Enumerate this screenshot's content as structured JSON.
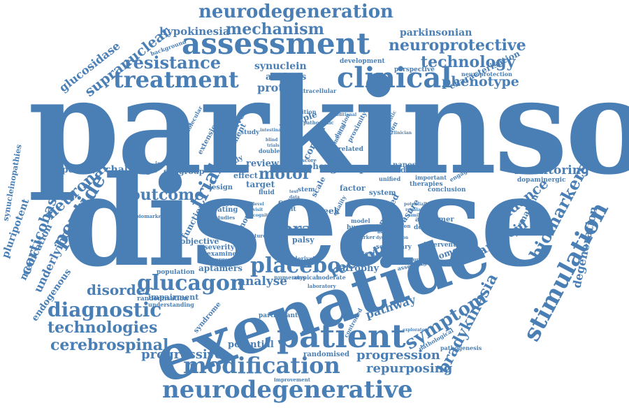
{
  "accent": "#4a7fb5",
  "words": [
    "parkinson",
    "disease",
    "exenatide",
    "patient",
    "modification",
    "neurodegenerative",
    "assessment",
    "neurodegeneration",
    "mechanism",
    "clinical",
    "treatment",
    "resistance",
    "neuroprotective",
    "technology",
    "phenotype",
    "stimulation",
    "placebo",
    "glucagon",
    "diagnostic",
    "technologies",
    "cerebrospinal",
    "progressive",
    "progression",
    "repurposing",
    "symptom",
    "bradykinesia",
    "biomarkers",
    "evidence",
    "monitoring",
    "amyloid",
    "degeneration",
    "receptor",
    "brain",
    "motor",
    "trial",
    "peptide",
    "neuronal",
    "outcome",
    "disorder",
    "analyse",
    "supranuclear",
    "glucosidase",
    "corticobasal",
    "pluripotent",
    "synucleinopathies",
    "underlying",
    "medication",
    "endogenous",
    "hypokinesia",
    "parkinsonian",
    "synuclein",
    "analysis",
    "protein",
    "challenge",
    "response",
    "group",
    "review",
    "cohort",
    "atrophy",
    "pathway",
    "potential",
    "aptamers",
    "objective",
    "severity",
    "examine",
    "impairment",
    "randomisation",
    "understanding",
    "cognitive",
    "multiple",
    "control",
    "system",
    "method",
    "nanoscopic",
    "alzheimer",
    "detecting",
    "exosomes",
    "intervention",
    "secondary",
    "characterisation",
    "neuroprotection",
    "perspective",
    "development",
    "extracellular",
    "formation",
    "dopaminergic",
    "conclusion",
    "therapies",
    "important",
    "engagement",
    "background",
    "subgroup",
    "individual",
    "molecular",
    "diabetes",
    "rating",
    "novel",
    "function",
    "design",
    "target",
    "effect",
    "study",
    "cell",
    "result",
    "week",
    "paint",
    "measure",
    "factor",
    "induced",
    "human",
    "numerous",
    "atypical",
    "moderate",
    "testing",
    "derived",
    "randomised",
    "participant",
    "pathological",
    "pathogenesis",
    "improvement",
    "syndrome",
    "population",
    "laboratory",
    "controlled",
    "literature",
    "scale",
    "stem",
    "fluid",
    "palsy",
    "related",
    "double",
    "proximity",
    "cognition",
    "association",
    "dementia",
    "duration",
    "biomarker",
    "mechanistic",
    "pathogenic",
    "weekly",
    "movement",
    "extension",
    "surgery",
    "predict",
    "studies",
    "score",
    "unified",
    "selection",
    "regulation",
    "potentially",
    "similar",
    "assessing",
    "marker",
    "future",
    "significant",
    "additional",
    "exploratory",
    "assessed",
    "dysregulation",
    "quality",
    "model",
    "rate",
    "data",
    "test",
    "level",
    "visit",
    "cognitive",
    "blind",
    "clinician",
    "trials",
    "intestinal"
  ]
}
